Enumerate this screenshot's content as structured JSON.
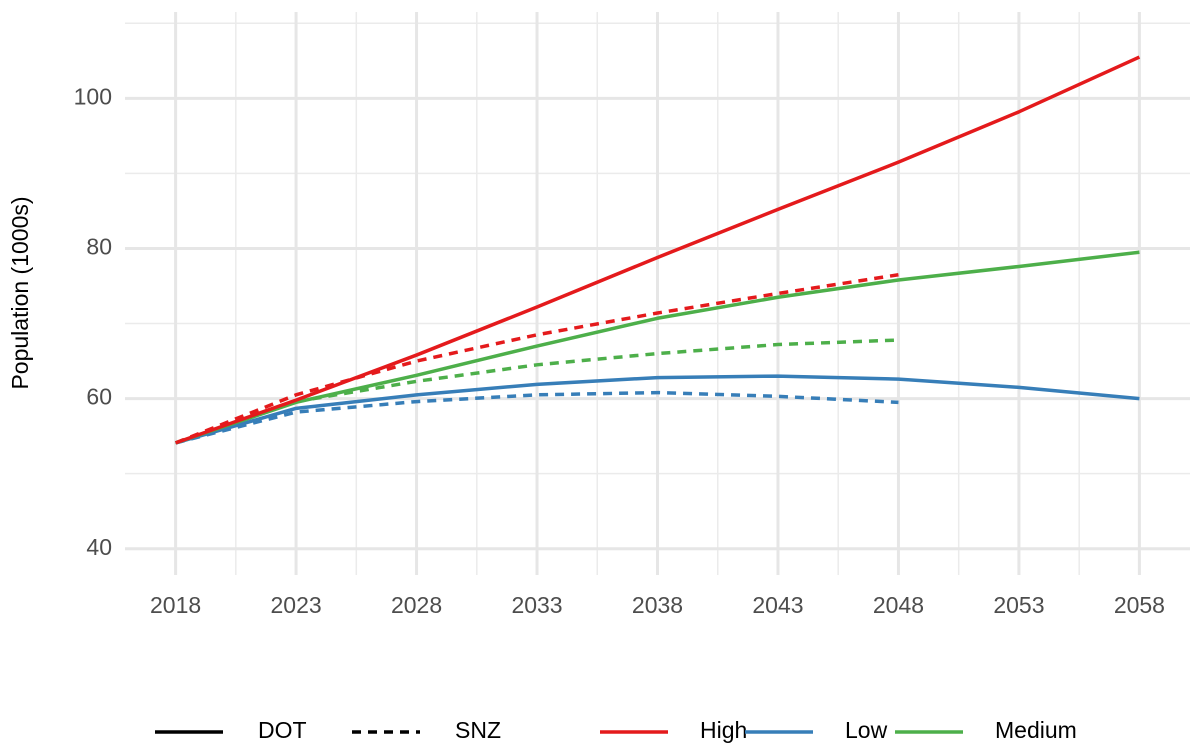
{
  "chart_data": {
    "type": "line",
    "y_label": "Population (1000s)",
    "x": [
      2018,
      2023,
      2028,
      2033,
      2038,
      2043,
      2048,
      2053,
      2058
    ],
    "xlim": [
      2015.9,
      2060.1
    ],
    "xticks": [
      2018,
      2023,
      2028,
      2033,
      2038,
      2043,
      2048,
      2053,
      2058
    ],
    "minor_xticks": [
      2020.5,
      2025.5,
      2030.5,
      2035.5,
      2040.5,
      2045.5,
      2050.5,
      2055.5
    ],
    "ylim": [
      36.5,
      111.5
    ],
    "yticks": [
      40,
      60,
      80,
      100
    ],
    "minor_yticks": [
      50,
      70,
      90,
      110
    ],
    "grid": true,
    "linetype_legend": [
      {
        "label": "DOT",
        "linetype": "solid"
      },
      {
        "label": "SNZ",
        "linetype": "dashed"
      }
    ],
    "color_legend": [
      {
        "label": "High",
        "color": "#e41a1c"
      },
      {
        "label": "Low",
        "color": "#377eb8"
      },
      {
        "label": "Medium",
        "color": "#4daf4a"
      }
    ],
    "series": [
      {
        "color": "#377eb8",
        "linetype": "dashed",
        "values": [
          54.1,
          58.2,
          59.6,
          60.5,
          60.8,
          60.3,
          59.5,
          null,
          null
        ]
      },
      {
        "color": "#4daf4a",
        "linetype": "dashed",
        "values": [
          54.1,
          59.6,
          62.3,
          64.5,
          66.0,
          67.2,
          67.8,
          null,
          null
        ]
      },
      {
        "color": "#e41a1c",
        "linetype": "dashed",
        "values": [
          54.1,
          60.5,
          65.0,
          68.5,
          71.4,
          74.0,
          76.5,
          null,
          null
        ]
      },
      {
        "color": "#377eb8",
        "linetype": "solid",
        "values": [
          54.1,
          58.7,
          60.5,
          61.9,
          62.8,
          63.0,
          62.6,
          61.5,
          60.0
        ]
      },
      {
        "color": "#4daf4a",
        "linetype": "solid",
        "values": [
          54.1,
          59.5,
          63.1,
          67.0,
          70.7,
          73.5,
          75.8,
          77.6,
          79.5
        ]
      },
      {
        "color": "#e41a1c",
        "linetype": "solid",
        "values": [
          54.1,
          59.8,
          65.8,
          72.2,
          78.8,
          85.2,
          91.5,
          98.2,
          105.5
        ]
      }
    ]
  }
}
